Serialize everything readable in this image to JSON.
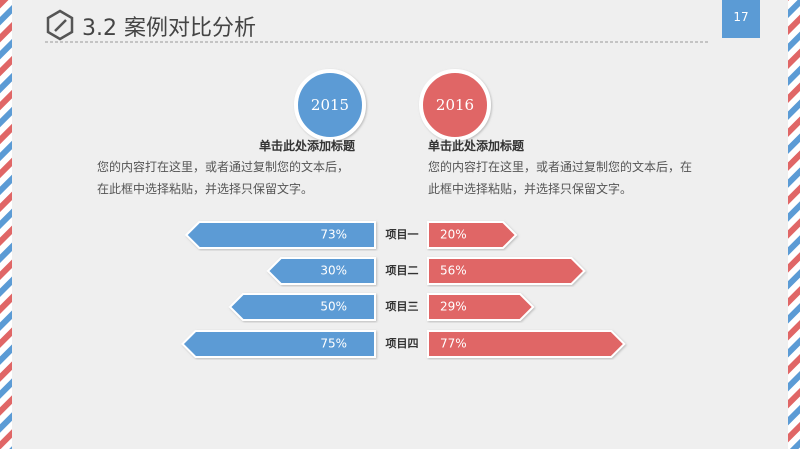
{
  "page_number": "17",
  "chart_data": {
    "type": "butterfly",
    "title": "3.2 案例对比分析",
    "categories": [
      "项目一",
      "项目二",
      "项目三",
      "项目四"
    ],
    "series": [
      {
        "name": "2015",
        "color": "#5b9bd5",
        "heading": "单击此处添加标题",
        "text": "您的内容打在这里，或者通过复制您的文本后，在此框中选择粘贴，并选择只保留文字。",
        "values": [
          73,
          30,
          50,
          75
        ],
        "value_labels": [
          "73%",
          "30%",
          "50%",
          "75%"
        ]
      },
      {
        "name": "2016",
        "color": "#e06666",
        "heading": "单击此处添加标题",
        "text": "您的内容打在这里，或者通过复制您的文本后，在此框中选择粘贴，并选择只保留文字。",
        "values": [
          20,
          56,
          29,
          77
        ],
        "value_labels": [
          "20%",
          "56%",
          "29%",
          "77%"
        ]
      }
    ]
  }
}
